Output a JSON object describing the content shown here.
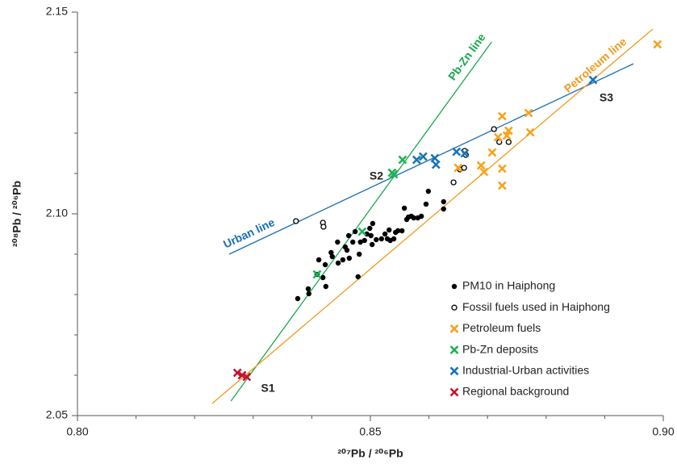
{
  "chart_data": {
    "type": "scatter",
    "x_label": "²⁰⁷Pb / ²⁰⁶Pb",
    "y_label": "²⁰⁸Pb / ²⁰⁶Pb",
    "xlim": [
      0.8,
      0.9
    ],
    "ylim": [
      2.05,
      2.15
    ],
    "xticks": [
      {
        "value": 0.8,
        "label": "0.80"
      },
      0.85,
      {
        "value": 0.9,
        "label": "0.90"
      }
    ],
    "yticks": [
      2.05,
      {
        "value": 2.1,
        "label": "2.10"
      },
      2.15
    ],
    "series": [
      {
        "name": "PM10 in Haiphong",
        "color": "#000000",
        "marker": "dot",
        "x": [
          0.8376,
          0.8394,
          0.8395,
          0.8409,
          0.8419,
          0.8412,
          0.8423,
          0.8433,
          0.8424,
          0.8435,
          0.8444,
          0.8445,
          0.8453,
          0.8457,
          0.8463,
          0.846,
          0.8464,
          0.847,
          0.8474,
          0.8481,
          0.8479,
          0.8483,
          0.849,
          0.8494,
          0.8499,
          0.8501,
          0.8504,
          0.8503,
          0.851,
          0.8519,
          0.8525,
          0.8529,
          0.8532,
          0.8534,
          0.854,
          0.8543,
          0.8547,
          0.8554,
          0.8558,
          0.8562,
          0.8565,
          0.857,
          0.8574,
          0.8581,
          0.8587,
          0.8595,
          0.8599,
          0.8625,
          0.8625
        ],
        "values": [
          2.079,
          2.0814,
          2.0802,
          2.085,
          2.0842,
          2.0886,
          2.0874,
          2.0904,
          2.082,
          2.0894,
          2.093,
          2.0878,
          2.0886,
          2.0918,
          2.0946,
          2.091,
          2.089,
          2.093,
          2.0956,
          2.09,
          2.0844,
          2.093,
          2.0934,
          2.095,
          2.0964,
          2.0946,
          2.0976,
          2.0924,
          2.0936,
          2.0938,
          2.095,
          2.0938,
          2.096,
          2.0934,
          2.0938,
          2.0954,
          2.0958,
          2.0958,
          2.1014,
          2.0986,
          2.0992,
          2.0994,
          2.099,
          2.099,
          2.0994,
          2.1024,
          2.1056,
          2.103,
          2.1012
        ]
      },
      {
        "name": "Fossil fuels used in Haiphong",
        "color": "#000000",
        "marker": "circle",
        "x": [
          0.8373,
          0.8419,
          0.842,
          0.8642,
          0.8653,
          0.866,
          0.8661,
          0.8663,
          0.8711,
          0.872,
          0.8736
        ],
        "values": [
          2.0982,
          2.0978,
          2.0968,
          2.1078,
          2.111,
          2.1114,
          2.1156,
          2.1146,
          2.121,
          2.1178,
          2.1178
        ]
      },
      {
        "name": "Petroleum fuels",
        "color": "#f7a21b",
        "marker": "x",
        "x": [
          0.865,
          0.8689,
          0.8694,
          0.8708,
          0.8718,
          0.8725,
          0.8725,
          0.8725,
          0.8733,
          0.8736,
          0.877,
          0.8773,
          0.899
        ],
        "values": [
          2.1114,
          2.112,
          2.1104,
          2.1152,
          2.119,
          2.1242,
          2.1112,
          2.107,
          2.1194,
          2.1206,
          2.125,
          2.1202,
          2.142
        ]
      },
      {
        "name": "Pb-Zn deposits",
        "color": "#1fb257",
        "marker": "x",
        "x": [
          0.8409,
          0.8486,
          0.8537,
          0.854,
          0.8555
        ],
        "values": [
          2.085,
          2.0956,
          2.1102,
          2.1098,
          2.1134
        ]
      },
      {
        "name": "Industrial-Urban activities",
        "color": "#1a73b8",
        "marker": "x",
        "x": [
          0.8579,
          0.859,
          0.861,
          0.8612,
          0.8647,
          0.8661,
          0.888
        ],
        "values": [
          2.1134,
          2.1142,
          2.1138,
          2.1122,
          2.1154,
          2.115,
          2.1332
        ]
      },
      {
        "name": "Regional background",
        "color": "#c8102e",
        "marker": "x",
        "x": [
          0.8273,
          0.8281,
          0.8289
        ],
        "values": [
          2.0606,
          2.06,
          2.0596
        ]
      }
    ],
    "lines": [
      {
        "name": "Urban line",
        "color": "#1a6eb5",
        "x": [
          0.8259,
          0.8949
        ],
        "values": [
          2.09,
          2.1372
        ]
      },
      {
        "name": "Pb-Zn line",
        "color": "#1aa84c",
        "x": [
          0.8262,
          0.8707
        ],
        "values": [
          2.0536,
          2.1426
        ]
      },
      {
        "name": "Petroleum line",
        "color": "#f39a1e",
        "x": [
          0.823,
          0.8982
        ],
        "values": [
          2.053,
          2.1458
        ]
      }
    ],
    "annotations": [
      {
        "text": "S1",
        "x": 0.829,
        "y": 2.06
      },
      {
        "text": "S2",
        "x": 0.854,
        "y": 2.11
      },
      {
        "text": "S3",
        "x": 0.888,
        "y": 2.133
      }
    ]
  }
}
